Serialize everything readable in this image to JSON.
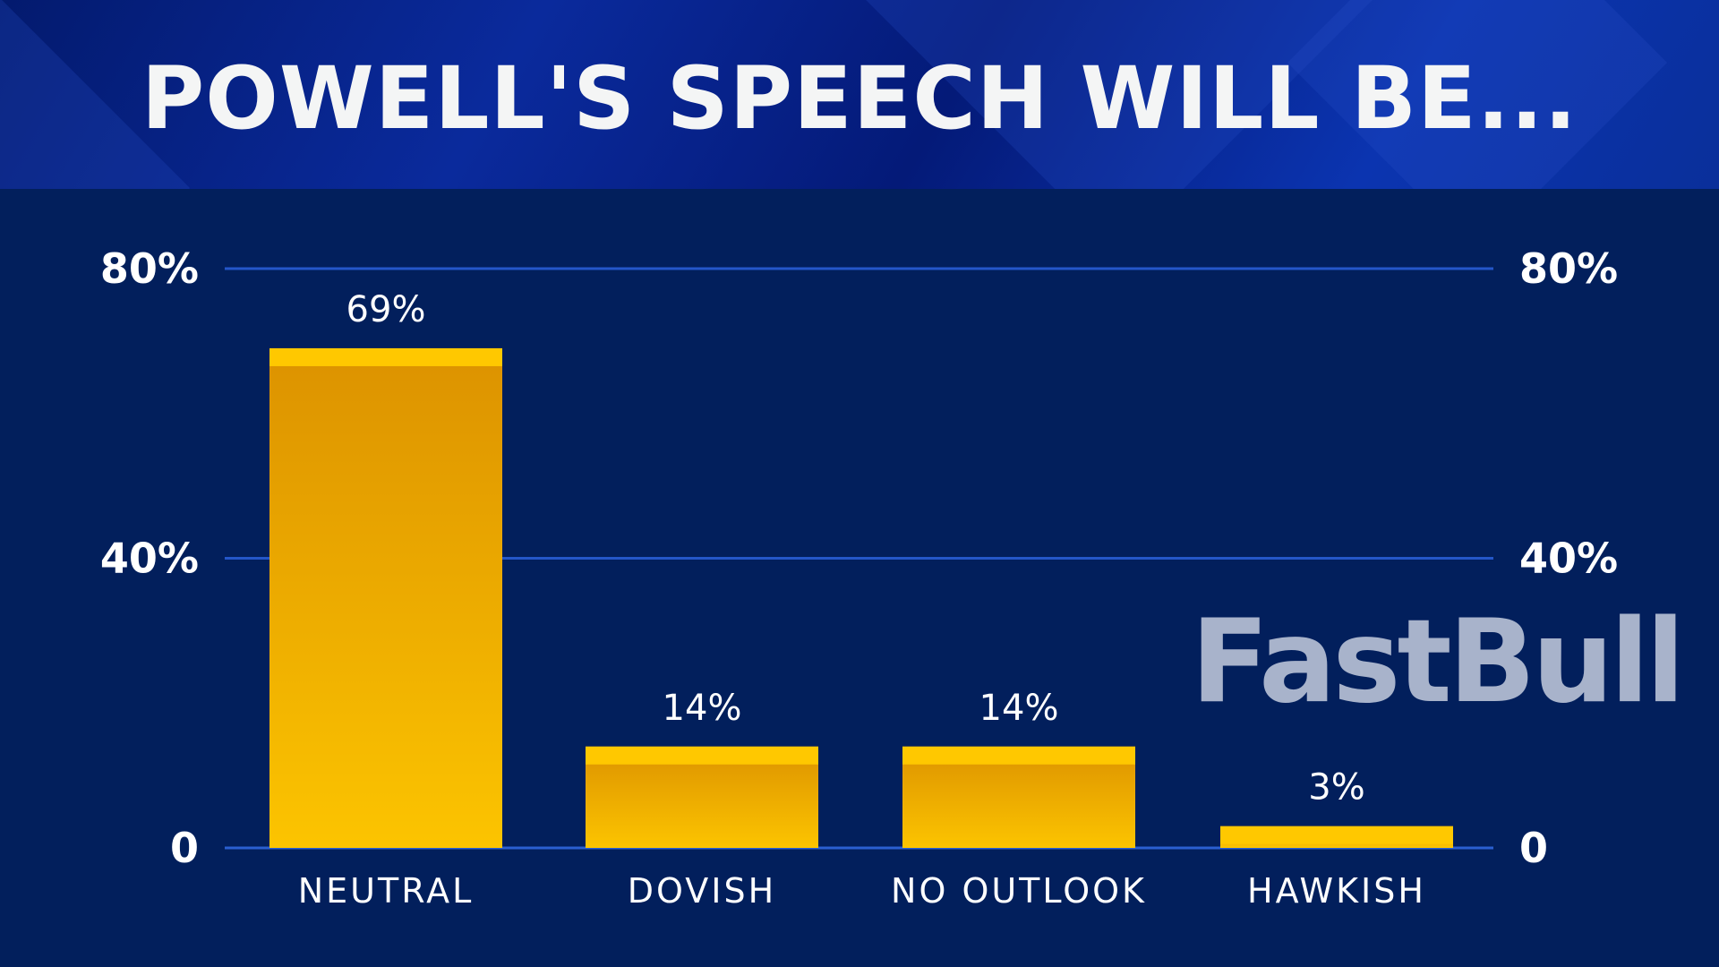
{
  "title": "POWELL'S SPEECH WILL BE...",
  "watermark": "FastBull",
  "colors": {
    "background": "#021f5c",
    "header": "#0a2a9c",
    "bar": "#f5b800",
    "bar_top": "#ffc800",
    "gridline": "#2456c8"
  },
  "chart_data": {
    "type": "bar",
    "title": "POWELL'S SPEECH WILL BE...",
    "categories": [
      "NEUTRAL",
      "DOVISH",
      "NO OUTLOOK",
      "HAWKISH"
    ],
    "values": [
      69,
      14,
      14,
      3
    ],
    "value_labels": [
      "69%",
      "14%",
      "14%",
      "3%"
    ],
    "ylim": [
      0,
      80
    ],
    "yticks": [
      0,
      40,
      80
    ],
    "ytick_labels": [
      "0",
      "40%",
      "80%"
    ],
    "axes": "left and right",
    "grid": true,
    "xlabel": "",
    "ylabel": ""
  }
}
